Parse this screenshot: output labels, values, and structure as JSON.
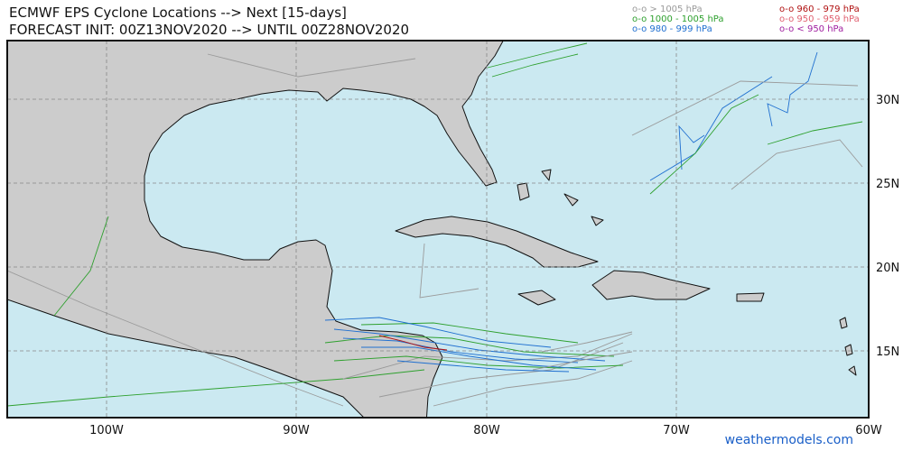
{
  "header": {
    "title": "ECMWF EPS Cyclone Locations --> Next [15-days]",
    "subtitle": "FORECAST INIT: 00Z13NOV2020 --> UNTIL 00Z28NOV2020"
  },
  "legend": [
    {
      "label": "o-o > 1005 hPa",
      "color": "#9a9a9a"
    },
    {
      "label": "o-o 1000 - 1005 hPa",
      "color": "#2ea02e"
    },
    {
      "label": "o-o 980 - 999 hPa",
      "color": "#1f6fd0"
    },
    {
      "label": "o-o 960 - 979 hPa",
      "color": "#b01010"
    },
    {
      "label": "o-o 950 - 959 hPa",
      "color": "#e06070"
    },
    {
      "label": "o-o < 950 hPa",
      "color": "#a020a0"
    }
  ],
  "map": {
    "lon_labels": [
      "100W",
      "90W",
      "80W",
      "70W",
      "60W"
    ],
    "lat_labels": [
      "30N",
      "25N",
      "20N",
      "15N"
    ]
  },
  "footer": {
    "credit": "weathermodels.com"
  }
}
